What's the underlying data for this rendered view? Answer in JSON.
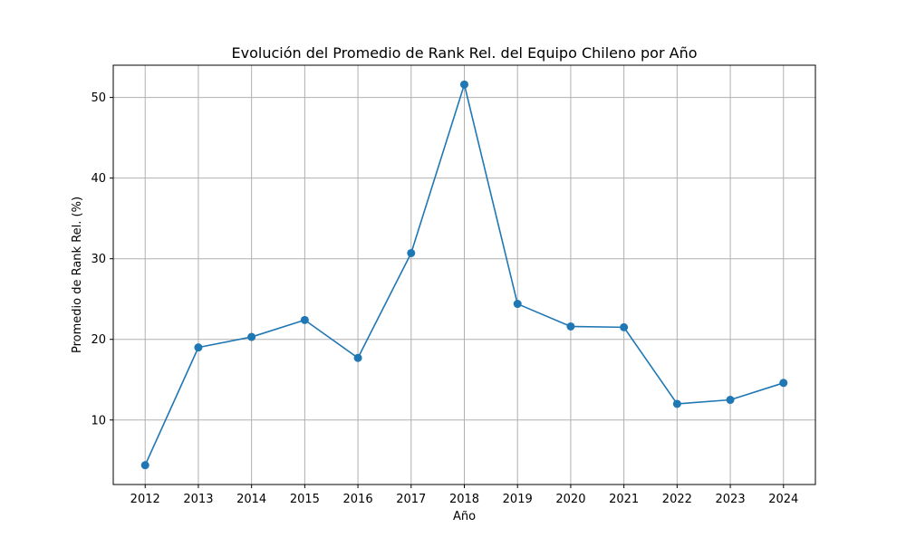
{
  "chart_data": {
    "type": "line",
    "title": "Evolución del Promedio de Rank Rel. del Equipo Chileno por Año",
    "xlabel": "Año",
    "ylabel": "Promedio de Rank Rel. (%)",
    "x": [
      2012,
      2013,
      2014,
      2015,
      2016,
      2017,
      2018,
      2019,
      2020,
      2021,
      2022,
      2023,
      2024
    ],
    "series": [
      {
        "values": [
          4.4,
          19.0,
          20.3,
          22.4,
          17.7,
          30.7,
          51.6,
          24.4,
          21.6,
          21.5,
          12.0,
          12.5,
          14.6
        ],
        "color": "#1f77b4",
        "marker": "circle"
      }
    ],
    "xlim": [
      2011.4,
      2024.6
    ],
    "ylim": [
      2.0,
      54.0
    ],
    "xticks": [
      "2012",
      "2013",
      "2014",
      "2015",
      "2016",
      "2017",
      "2018",
      "2019",
      "2020",
      "2021",
      "2022",
      "2023",
      "2024"
    ],
    "yticks": [
      "10",
      "20",
      "30",
      "40",
      "50"
    ],
    "ytick_values": [
      10,
      20,
      30,
      40,
      50
    ],
    "grid": true,
    "grid_color": "#b0b0b0",
    "legend": false
  }
}
